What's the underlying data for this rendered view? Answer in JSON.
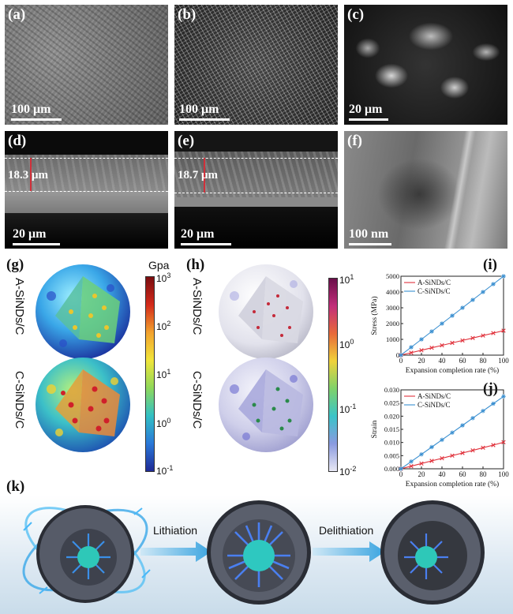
{
  "panels": {
    "a": {
      "label": "(a)",
      "scale": "100 μm"
    },
    "b": {
      "label": "(b)",
      "scale": "100 μm"
    },
    "c": {
      "label": "(c)",
      "scale": "20 μm"
    },
    "d": {
      "label": "(d)",
      "scale": "20 μm",
      "thickness": "18.3 μm"
    },
    "e": {
      "label": "(e)",
      "scale": "20 μm",
      "thickness": "18.7 μm"
    },
    "f": {
      "label": "(f)",
      "scale": "100 nm"
    },
    "g": {
      "label": "(g)",
      "unit": "Gpa",
      "row1": "A-SiNDs/C",
      "row2": "C-SiNDs/C",
      "ticks": [
        "10",
        "10",
        "10",
        "10",
        "10"
      ],
      "exps": [
        "3",
        "2",
        "1",
        "0",
        "-1"
      ]
    },
    "h": {
      "label": "(h)",
      "row1": "A-SiNDs/C",
      "row2": "C-SiNDs/C",
      "ticks": [
        "10",
        "10",
        "10",
        "10"
      ],
      "exps": [
        "1",
        "0",
        "-1",
        "-2"
      ]
    },
    "i": {
      "label": "(i)"
    },
    "j": {
      "label": "(j)"
    },
    "k": {
      "label": "(k)",
      "step1": "Lithiation",
      "step2": "Delithiation"
    }
  },
  "chart_data": [
    {
      "type": "line",
      "panel": "(i)",
      "xlabel": "Expansion completion rate (%)",
      "ylabel": "Stress (MPa)",
      "xlim": [
        0,
        100
      ],
      "ylim": [
        0,
        5000
      ],
      "xticks": [
        "0",
        "20",
        "40",
        "60",
        "80",
        "100"
      ],
      "yticks": [
        "0",
        "1000",
        "2000",
        "3000",
        "4000",
        "5000"
      ],
      "legend_position": "top-left",
      "x": [
        0,
        10,
        20,
        30,
        40,
        50,
        60,
        70,
        80,
        90,
        100
      ],
      "series": [
        {
          "name": "A-SiNDs/C",
          "color": "#e0323c",
          "marker": "x",
          "values": [
            0,
            155,
            310,
            465,
            620,
            775,
            930,
            1085,
            1240,
            1395,
            1550
          ]
        },
        {
          "name": "C-SiNDs/C",
          "color": "#3a8fd0",
          "marker": "*",
          "values": [
            0,
            500,
            1000,
            1500,
            2000,
            2500,
            3000,
            3500,
            4000,
            4500,
            5000
          ]
        }
      ]
    },
    {
      "type": "line",
      "panel": "(j)",
      "xlabel": "Expansion completion rate (%)",
      "ylabel": "Strain",
      "xlim": [
        0,
        100
      ],
      "ylim": [
        0,
        0.03
      ],
      "xticks": [
        "0",
        "20",
        "40",
        "60",
        "80",
        "100"
      ],
      "yticks": [
        "0.000",
        "0.005",
        "0.010",
        "0.015",
        "0.020",
        "0.025",
        "0.030"
      ],
      "legend_position": "top-left",
      "x": [
        0,
        10,
        20,
        30,
        40,
        50,
        60,
        70,
        80,
        90,
        100
      ],
      "series": [
        {
          "name": "A-SiNDs/C",
          "color": "#e0323c",
          "marker": "x",
          "values": [
            0,
            0.001,
            0.002,
            0.003,
            0.004,
            0.005,
            0.006,
            0.007,
            0.008,
            0.009,
            0.0101
          ]
        },
        {
          "name": "C-SiNDs/C",
          "color": "#3a8fd0",
          "marker": "*",
          "values": [
            0,
            0.00275,
            0.0055,
            0.00825,
            0.011,
            0.01375,
            0.0165,
            0.01925,
            0.022,
            0.02475,
            0.0275
          ]
        }
      ]
    }
  ]
}
